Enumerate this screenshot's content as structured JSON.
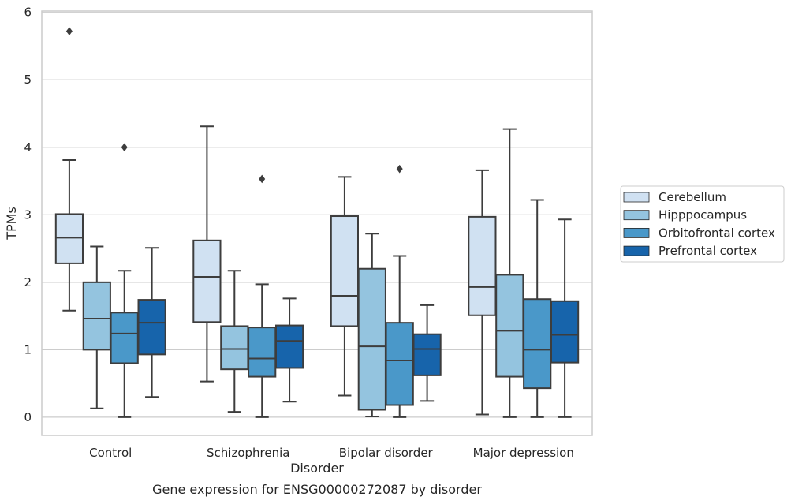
{
  "caption": "Gene expression for ENSG00000272087 by disorder",
  "chart_data": {
    "type": "box",
    "xlabel": "Disorder",
    "ylabel": "TPMs",
    "ylim": [
      -0.27,
      6.02
    ],
    "yticks": [
      0,
      1,
      2,
      3,
      4,
      5,
      6
    ],
    "grid": "horizontal",
    "legend_position": "right",
    "categories": [
      "Control",
      "Schizophrenia",
      "Bipolar disorder",
      "Major depression"
    ],
    "series": [
      {
        "name": "Cerebellum",
        "color": "#d0e1f2",
        "boxes": [
          {
            "whislo": 1.58,
            "q1": 2.28,
            "med": 2.66,
            "q3": 3.01,
            "whishi": 3.81,
            "fliers": [
              5.72
            ]
          },
          {
            "whislo": 0.53,
            "q1": 1.41,
            "med": 2.08,
            "q3": 2.62,
            "whishi": 4.31,
            "fliers": []
          },
          {
            "whislo": 0.32,
            "q1": 1.35,
            "med": 1.8,
            "q3": 2.98,
            "whishi": 3.56,
            "fliers": []
          },
          {
            "whislo": 0.04,
            "q1": 1.51,
            "med": 1.93,
            "q3": 2.97,
            "whishi": 3.66,
            "fliers": []
          }
        ]
      },
      {
        "name": "Hipppocampus",
        "color": "#94c4df",
        "boxes": [
          {
            "whislo": 0.13,
            "q1": 1.0,
            "med": 1.46,
            "q3": 2.0,
            "whishi": 2.53,
            "fliers": []
          },
          {
            "whislo": 0.08,
            "q1": 0.71,
            "med": 1.01,
            "q3": 1.35,
            "whishi": 2.17,
            "fliers": []
          },
          {
            "whislo": 0.01,
            "q1": 0.11,
            "med": 1.05,
            "q3": 2.2,
            "whishi": 2.72,
            "fliers": []
          },
          {
            "whislo": 0.0,
            "q1": 0.6,
            "med": 1.28,
            "q3": 2.11,
            "whishi": 4.27,
            "fliers": []
          }
        ]
      },
      {
        "name": "Orbitofrontal cortex",
        "color": "#4a98c9",
        "boxes": [
          {
            "whislo": 0.0,
            "q1": 0.8,
            "med": 1.24,
            "q3": 1.55,
            "whishi": 2.17,
            "fliers": [
              4.0
            ]
          },
          {
            "whislo": 0.0,
            "q1": 0.6,
            "med": 0.87,
            "q3": 1.33,
            "whishi": 1.97,
            "fliers": [
              3.53
            ]
          },
          {
            "whislo": 0.0,
            "q1": 0.18,
            "med": 0.84,
            "q3": 1.4,
            "whishi": 2.39,
            "fliers": [
              3.68
            ]
          },
          {
            "whislo": 0.0,
            "q1": 0.43,
            "med": 1.0,
            "q3": 1.75,
            "whishi": 3.22,
            "fliers": []
          }
        ]
      },
      {
        "name": "Prefrontal cortex",
        "color": "#1764ab",
        "boxes": [
          {
            "whislo": 0.3,
            "q1": 0.93,
            "med": 1.4,
            "q3": 1.74,
            "whishi": 2.51,
            "fliers": []
          },
          {
            "whislo": 0.23,
            "q1": 0.73,
            "med": 1.13,
            "q3": 1.36,
            "whishi": 1.76,
            "fliers": []
          },
          {
            "whislo": 0.24,
            "q1": 0.62,
            "med": 1.01,
            "q3": 1.23,
            "whishi": 1.66,
            "fliers": []
          },
          {
            "whislo": 0.0,
            "q1": 0.81,
            "med": 1.22,
            "q3": 1.72,
            "whishi": 2.93,
            "fliers": []
          }
        ]
      }
    ]
  }
}
